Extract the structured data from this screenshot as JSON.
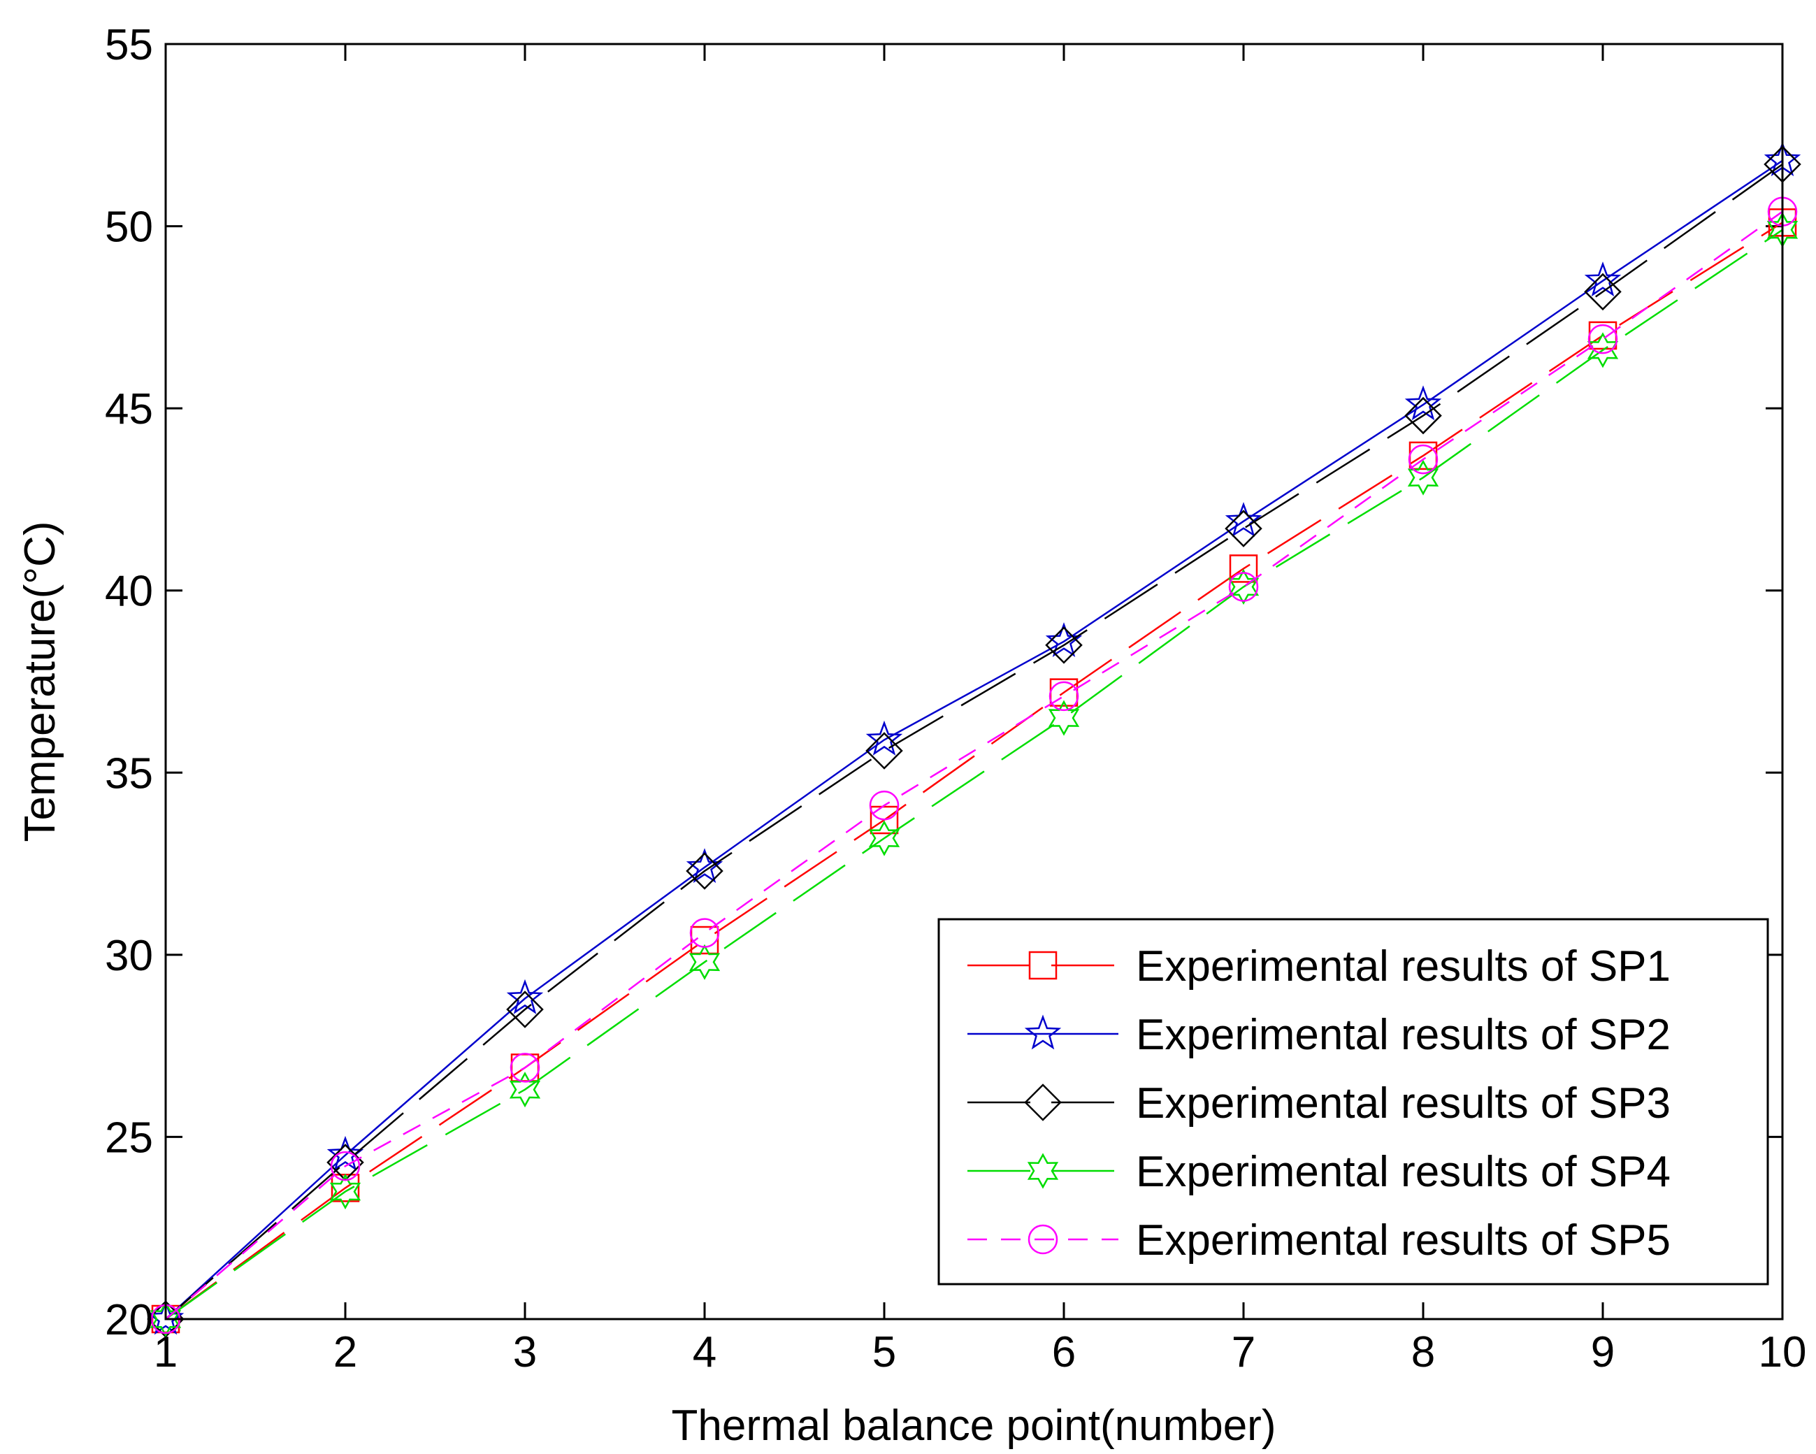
{
  "chart_data": {
    "type": "line",
    "title": "",
    "xlabel": "Thermal balance point(number)",
    "ylabel": "Temperature(°C)",
    "xlim": [
      1,
      10
    ],
    "ylim": [
      20,
      55
    ],
    "xticks": [
      "1",
      "2",
      "3",
      "4",
      "5",
      "6",
      "7",
      "8",
      "9",
      "10"
    ],
    "yticks": [
      "20",
      "25",
      "30",
      "35",
      "40",
      "45",
      "50",
      "55"
    ],
    "grid": false,
    "legend_position": "bottom-right",
    "x": [
      1,
      2,
      3,
      4,
      5,
      6,
      7,
      8,
      9,
      10
    ],
    "series": [
      {
        "name": "Experimental results of SP1",
        "color": "#ff0000",
        "marker": "square",
        "values": [
          20.0,
          23.6,
          26.9,
          30.4,
          33.7,
          37.2,
          40.6,
          43.7,
          47.0,
          50.1
        ]
      },
      {
        "name": "Experimental results of SP2",
        "color": "#0000cc",
        "marker": "star5",
        "values": [
          20.0,
          24.5,
          28.8,
          32.4,
          35.9,
          38.6,
          41.9,
          45.1,
          48.5,
          51.8
        ]
      },
      {
        "name": "Experimental results of SP3",
        "color": "#000000",
        "marker": "diamond",
        "values": [
          20.0,
          24.3,
          28.5,
          32.3,
          35.6,
          38.5,
          41.7,
          44.8,
          48.2,
          51.7
        ]
      },
      {
        "name": "Experimental results of SP4",
        "color": "#00dd00",
        "marker": "hexagram",
        "values": [
          20.0,
          23.5,
          26.3,
          29.8,
          33.2,
          36.5,
          40.1,
          43.1,
          46.6,
          49.9
        ]
      },
      {
        "name": "Experimental results of SP5",
        "color": "#ff00ff",
        "marker": "circle",
        "values": [
          20.0,
          24.2,
          26.9,
          30.6,
          34.1,
          37.1,
          40.1,
          43.6,
          46.9,
          50.4
        ]
      }
    ]
  }
}
